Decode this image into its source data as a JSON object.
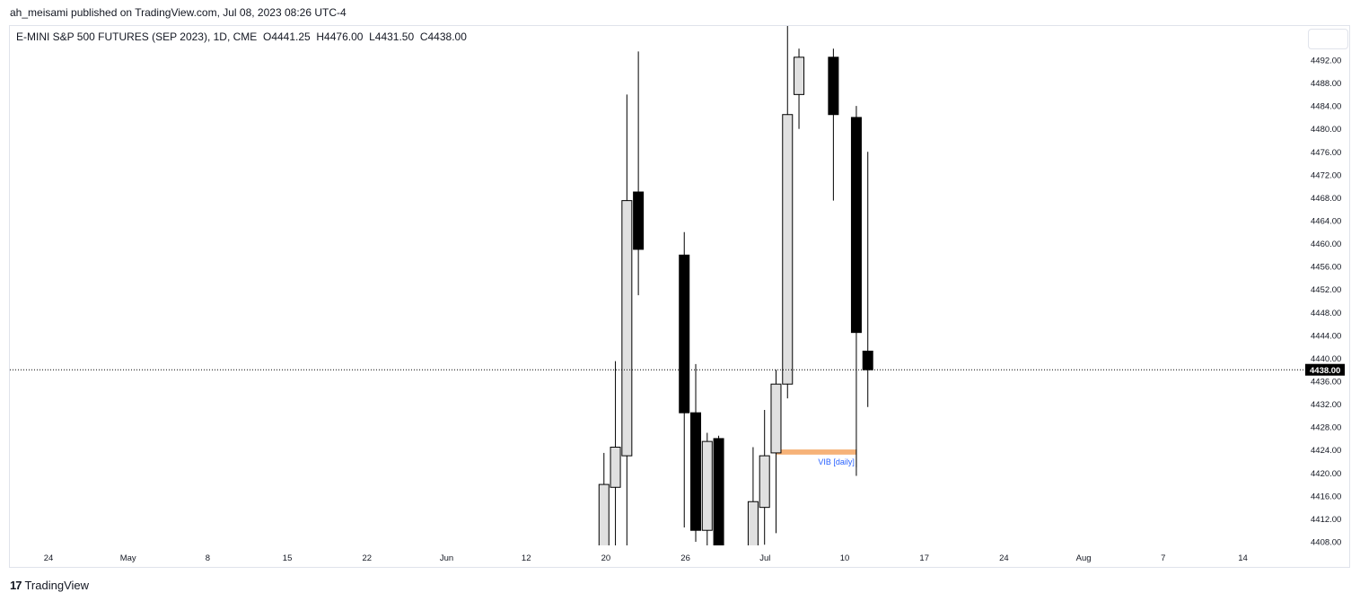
{
  "publisher_line": "ah_meisami published on TradingView.com, Jul 08, 2023 08:26 UTC-4",
  "legend": {
    "symbol": "E-MINI S&P 500 FUTURES (SEP 2023), 1D, CME",
    "open": "O4441.25",
    "high": "H4476.00",
    "low": "L4431.50",
    "close": "C4438.00"
  },
  "brand": {
    "logo": "17",
    "name": "TradingView",
    "logo_icon": "tradingview-logo-icon"
  },
  "colors": {
    "up_body": "#e0e0e0",
    "down_body": "#000000",
    "wick": "#000000",
    "price_label_bg": "#000000",
    "vib_zone": "#f4a460",
    "vib_label": "#2962ff"
  },
  "chart_data": {
    "type": "candlestick",
    "x_tick_labels": [
      "24",
      "May",
      "8",
      "15",
      "22",
      "Jun",
      "12",
      "20",
      "26",
      "Jul",
      "10",
      "17",
      "24",
      "Aug",
      "7",
      "14"
    ],
    "y_tick_labels": [
      "4492.00",
      "4488.00",
      "4484.00",
      "4480.00",
      "4476.00",
      "4472.00",
      "4468.00",
      "4464.00",
      "4460.00",
      "4456.00",
      "4452.00",
      "4448.00",
      "4444.00",
      "4440.00",
      "4436.00",
      "4432.00",
      "4428.00",
      "4424.00",
      "4420.00",
      "4416.00",
      "4412.00",
      "4408.00"
    ],
    "ylim": [
      4407,
      4499
    ],
    "last_price": 4438.0,
    "last_price_label": "4438.00",
    "candles": [
      {
        "date": "2023-06-13",
        "open": 4406,
        "high": 4423.5,
        "low": 4404,
        "close": 4418
      },
      {
        "date": "2023-06-14",
        "open": 4417.5,
        "high": 4439.5,
        "low": 4404,
        "close": 4424.5
      },
      {
        "date": "2023-06-15",
        "open": 4423,
        "high": 4486,
        "low": 4405,
        "close": 4467.5
      },
      {
        "date": "2023-06-16",
        "open": 4469,
        "high": 4493.5,
        "low": 4451,
        "close": 4459
      },
      {
        "date": "2023-06-20",
        "open": 4458,
        "high": 4462,
        "low": 4410.5,
        "close": 4430.5
      },
      {
        "date": "2023-06-21",
        "open": 4430.5,
        "high": 4439,
        "low": 4408,
        "close": 4410
      },
      {
        "date": "2023-06-22",
        "open": 4410,
        "high": 4427,
        "low": 4406,
        "close": 4425.5
      },
      {
        "date": "2023-06-23",
        "open": 4426,
        "high": 4426.5,
        "low": 4403,
        "close": 4404
      },
      {
        "date": "2023-06-26",
        "open": 4402,
        "high": 4424.5,
        "low": 4401,
        "close": 4415
      },
      {
        "date": "2023-06-27",
        "open": 4414,
        "high": 4431,
        "low": 4407.5,
        "close": 4423
      },
      {
        "date": "2023-06-28",
        "open": 4423.5,
        "high": 4438,
        "low": 4409.5,
        "close": 4435.5
      },
      {
        "date": "2023-06-29",
        "open": 4435.5,
        "high": 4499,
        "low": 4433,
        "close": 4482.5
      },
      {
        "date": "2023-06-30",
        "open": 4486,
        "high": 4494,
        "low": 4480,
        "close": 4492.5
      },
      {
        "date": "2023-07-03",
        "open": 4492.5,
        "high": 4494,
        "low": 4467.5,
        "close": 4482.5
      },
      {
        "date": "2023-07-05",
        "open": 4482,
        "high": 4484,
        "low": 4419.5,
        "close": 4444.5
      },
      {
        "date": "2023-07-06",
        "open": 4441.25,
        "high": 4476,
        "low": 4431.5,
        "close": 4438
      }
    ],
    "annotations": [
      {
        "type": "zone",
        "label": "VIB [daily]",
        "from": "2023-06-28",
        "to": "2023-07-05",
        "y_low": 4423.2,
        "y_high": 4424.1
      }
    ],
    "grid": false
  }
}
